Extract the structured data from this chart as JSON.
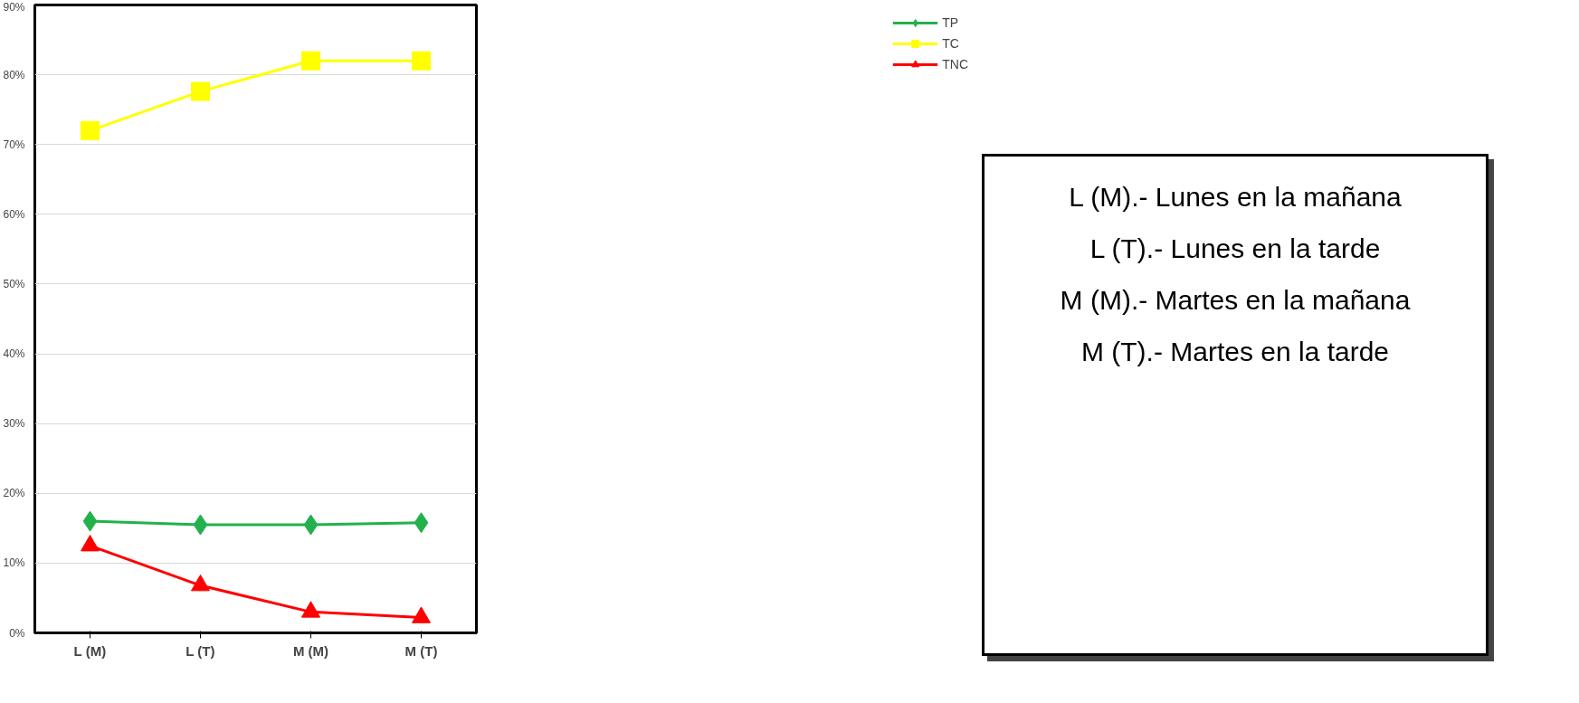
{
  "chart_data": {
    "type": "line",
    "categories": [
      "L (M)",
      "L (T)",
      "M (M)",
      "M (T)"
    ],
    "series": [
      {
        "name": "TP",
        "color": "#22b14c",
        "marker": "diamond",
        "values": [
          16,
          15.5,
          15.5,
          15.8
        ]
      },
      {
        "name": "TC",
        "color": "#ffff00",
        "marker": "square",
        "values": [
          72,
          77.6,
          82,
          82
        ]
      },
      {
        "name": "TNC",
        "color": "#ff0000",
        "marker": "triangle",
        "values": [
          12.5,
          6.8,
          3,
          2.2
        ]
      }
    ],
    "ylim": [
      0,
      90
    ],
    "yticks": [
      {
        "value": 0,
        "label": "0%"
      },
      {
        "value": 10,
        "label": "10%"
      },
      {
        "value": 20,
        "label": "20%"
      },
      {
        "value": 30,
        "label": "30%"
      },
      {
        "value": 40,
        "label": "40%"
      },
      {
        "value": 50,
        "label": "50%"
      },
      {
        "value": 60,
        "label": "60%"
      },
      {
        "value": 70,
        "label": "70%"
      },
      {
        "value": 80,
        "label": "80%"
      },
      {
        "value": 90,
        "label": "90%"
      }
    ],
    "grid": "y",
    "legend": "right",
    "line_style": "solid",
    "annotations": [
      "L (M).- Lunes en la mañana",
      "L (T).- Lunes en la tarde",
      "M (M).- Martes en la mañana",
      "M (T).- Martes en la tarde"
    ]
  }
}
